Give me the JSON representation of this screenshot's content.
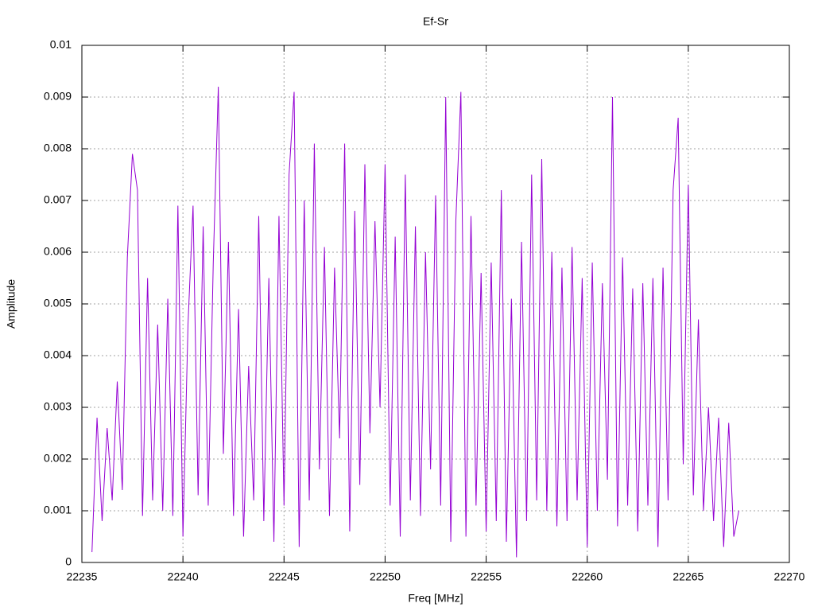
{
  "chart_data": {
    "type": "line",
    "title": "Ef-Sr",
    "xlabel": "Freq [MHz]",
    "ylabel": "Amplitude",
    "xlim": [
      22235,
      22270
    ],
    "xticks": [
      22235,
      22240,
      22245,
      22250,
      22255,
      22260,
      22265,
      22270
    ],
    "ylim": [
      0,
      0.01
    ],
    "yticks": [
      0,
      0.001,
      0.002,
      0.003,
      0.004,
      0.005,
      0.006,
      0.007,
      0.008,
      0.009,
      0.01
    ],
    "grid": true,
    "x": [
      22235.5,
      22235.75,
      22236,
      22236.25,
      22236.5,
      22236.75,
      22237,
      22237.25,
      22237.5,
      22237.75,
      22238,
      22238.25,
      22238.5,
      22238.75,
      22239,
      22239.25,
      22239.5,
      22239.75,
      22240,
      22240.25,
      22240.5,
      22240.75,
      22241,
      22241.25,
      22241.5,
      22241.75,
      22242,
      22242.25,
      22242.5,
      22242.75,
      22243,
      22243.25,
      22243.5,
      22243.75,
      22244,
      22244.25,
      22244.5,
      22244.75,
      22245,
      22245.25,
      22245.5,
      22245.75,
      22246,
      22246.25,
      22246.5,
      22246.75,
      22247,
      22247.25,
      22247.5,
      22247.75,
      22248,
      22248.25,
      22248.5,
      22248.75,
      22249,
      22249.25,
      22249.5,
      22249.75,
      22250,
      22250.25,
      22250.5,
      22250.75,
      22251,
      22251.25,
      22251.5,
      22251.75,
      22252,
      22252.25,
      22252.5,
      22252.75,
      22253,
      22253.25,
      22253.5,
      22253.75,
      22254,
      22254.25,
      22254.5,
      22254.75,
      22255,
      22255.25,
      22255.5,
      22255.75,
      22256,
      22256.25,
      22256.5,
      22256.75,
      22257,
      22257.25,
      22257.5,
      22257.75,
      22258,
      22258.25,
      22258.5,
      22258.75,
      22259,
      22259.25,
      22259.5,
      22259.75,
      22260,
      22260.25,
      22260.5,
      22260.75,
      22261,
      22261.25,
      22261.5,
      22261.75,
      22262,
      22262.25,
      22262.5,
      22262.75,
      22263,
      22263.25,
      22263.5,
      22263.75,
      22264,
      22264.25,
      22264.5,
      22264.75,
      22265,
      22265.25,
      22265.5,
      22265.75,
      22266,
      22266.25,
      22266.5,
      22266.75,
      22267,
      22267.25,
      22267.5
    ],
    "series": [
      {
        "color": "#9400d3",
        "values": [
          0.0002,
          0.0028,
          0.0008,
          0.0026,
          0.0012,
          0.0035,
          0.0014,
          0.0059,
          0.0079,
          0.0072,
          0.0009,
          0.0055,
          0.0012,
          0.0046,
          0.001,
          0.0051,
          0.0009,
          0.0069,
          0.0005,
          0.0046,
          0.0069,
          0.0013,
          0.0065,
          0.0011,
          0.0058,
          0.0092,
          0.0021,
          0.0062,
          0.0009,
          0.0049,
          0.0005,
          0.0038,
          0.0012,
          0.0067,
          0.0008,
          0.0055,
          0.0004,
          0.0067,
          0.0011,
          0.0075,
          0.0091,
          0.0003,
          0.007,
          0.0012,
          0.0081,
          0.0018,
          0.0061,
          0.0009,
          0.0057,
          0.0024,
          0.0081,
          0.0006,
          0.0068,
          0.0015,
          0.0077,
          0.0025,
          0.0066,
          0.003,
          0.0077,
          0.0011,
          0.0063,
          0.0005,
          0.0075,
          0.0012,
          0.0065,
          0.0009,
          0.006,
          0.0018,
          0.0071,
          0.0011,
          0.009,
          0.0004,
          0.0066,
          0.0091,
          0.0005,
          0.0067,
          0.0011,
          0.0056,
          0.0006,
          0.0058,
          0.0008,
          0.0072,
          0.0004,
          0.0051,
          0.0001,
          0.0062,
          0.0008,
          0.0075,
          0.0012,
          0.0078,
          0.001,
          0.006,
          0.0007,
          0.0057,
          0.0008,
          0.0061,
          0.0012,
          0.0055,
          0.0003,
          0.0058,
          0.001,
          0.0054,
          0.0016,
          0.009,
          0.0007,
          0.0059,
          0.0011,
          0.0053,
          0.0006,
          0.0054,
          0.0011,
          0.0055,
          0.0003,
          0.0057,
          0.0012,
          0.0072,
          0.0086,
          0.0019,
          0.0073,
          0.0013,
          0.0047,
          0.001,
          0.003,
          0.0008,
          0.0028,
          0.0003,
          0.0027,
          0.0005,
          0.001
        ]
      }
    ]
  }
}
